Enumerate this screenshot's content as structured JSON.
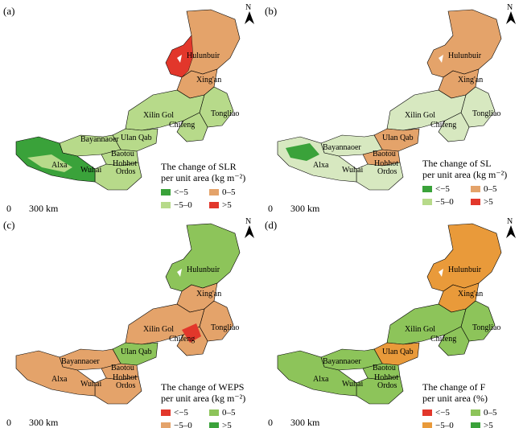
{
  "colors": {
    "dark_green": "#3aa23a",
    "light_green": "#b7da8a",
    "orange": "#e4a36a",
    "red": "#e2372b",
    "pale_green": "#d7e8c0",
    "mid_green": "#8dc45a"
  },
  "north_label": "N",
  "scale_label": "300 km",
  "cities": [
    "Hulunbuir",
    "Xing'an",
    "Tongliao",
    "Xilin Gol",
    "Chifeng",
    "Ulan Qab",
    "Bayannaoer",
    "Baotou",
    "Hohhot",
    "Alxa",
    "Wuhai",
    "Ordos"
  ],
  "panels": [
    {
      "label": "(a)",
      "legend_title_1": "The change of SLR",
      "legend_title_2": "per unit area (kg m⁻²)",
      "items": [
        "<−5",
        "0–5",
        "−5–0",
        ">5"
      ]
    },
    {
      "label": "(b)",
      "legend_title_1": "The change of SL",
      "legend_title_2": "per unit area (kg m⁻²)",
      "items": [
        "<−5",
        "0–5",
        "−5–0",
        ">5"
      ]
    },
    {
      "label": "(c)",
      "legend_title_1": "The change of WEPS",
      "legend_title_2": "per unit area (kg m⁻²)",
      "items": [
        "<−5",
        "0–5",
        "−5–0",
        ">5"
      ]
    },
    {
      "label": "(d)",
      "legend_title_1": "The change of F",
      "legend_title_2": "per unit area (%)",
      "items": [
        "<−5",
        "0–5",
        "−5–0",
        ">5"
      ]
    }
  ]
}
